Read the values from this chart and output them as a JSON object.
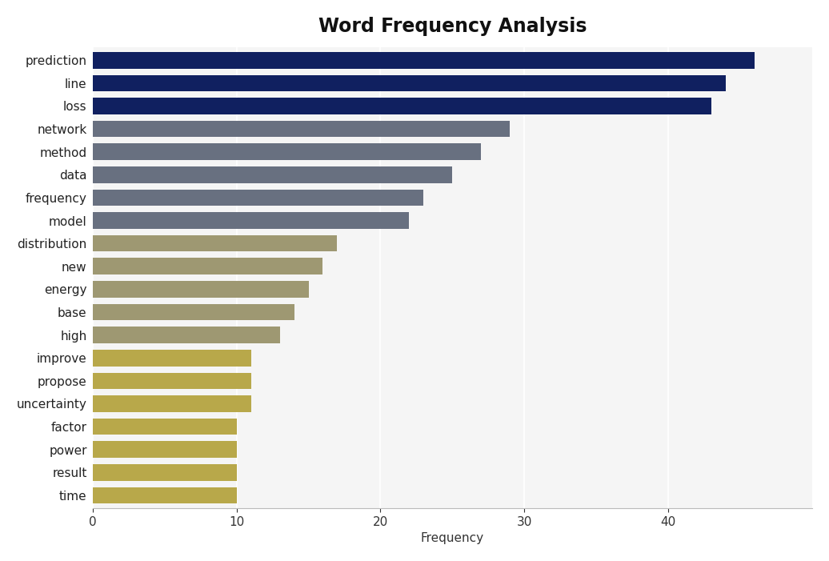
{
  "title": "Word Frequency Analysis",
  "xlabel": "Frequency",
  "categories": [
    "prediction",
    "line",
    "loss",
    "network",
    "method",
    "data",
    "frequency",
    "model",
    "distribution",
    "new",
    "energy",
    "base",
    "high",
    "improve",
    "propose",
    "uncertainty",
    "factor",
    "power",
    "result",
    "time"
  ],
  "values": [
    46,
    44,
    43,
    29,
    27,
    25,
    23,
    22,
    17,
    16,
    15,
    14,
    13,
    11,
    11,
    11,
    10,
    10,
    10,
    10
  ],
  "bar_colors": [
    "#102060",
    "#102060",
    "#102060",
    "#687080",
    "#687080",
    "#687080",
    "#687080",
    "#687080",
    "#9e9872",
    "#9e9872",
    "#9e9872",
    "#9e9872",
    "#9e9872",
    "#b8a84a",
    "#b8a84a",
    "#b8a84a",
    "#b8a84a",
    "#b8a84a",
    "#b8a84a",
    "#b8a84a"
  ],
  "plot_bg_color": "#f5f5f5",
  "fig_bg_color": "#ffffff",
  "xlim": [
    0,
    50
  ],
  "xticks": [
    0,
    10,
    20,
    30,
    40
  ],
  "title_fontsize": 17,
  "label_fontsize": 11,
  "axis_fontsize": 11,
  "bar_height": 0.72
}
